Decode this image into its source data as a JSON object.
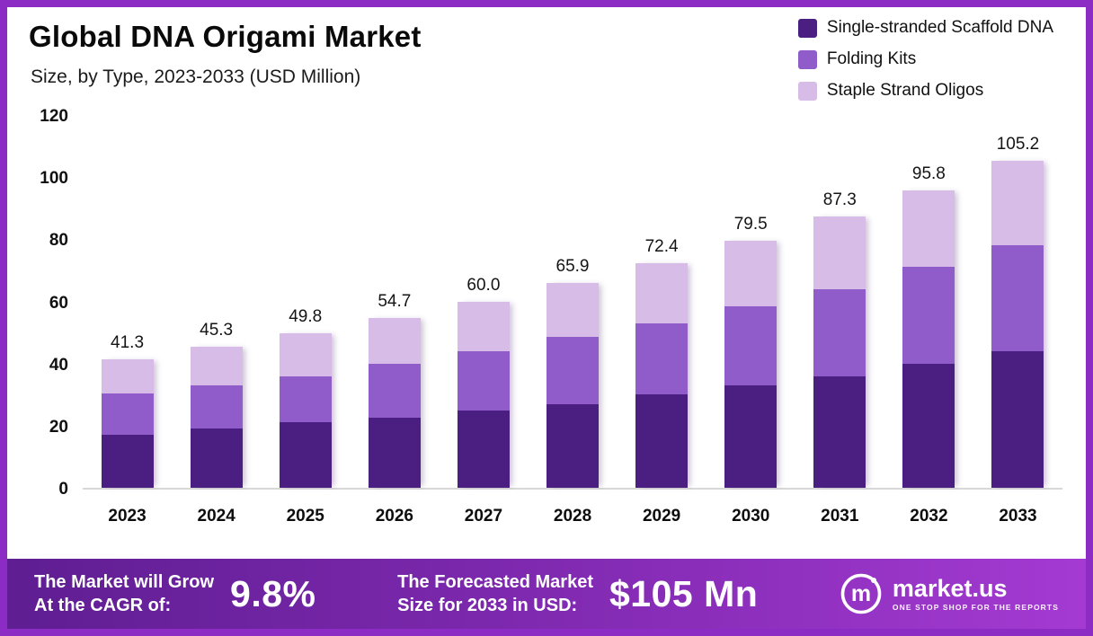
{
  "header": {
    "title": "Global DNA Origami Market",
    "subtitle": "Size, by Type, 2023-2033 (USD Million)"
  },
  "legend": [
    {
      "label": "Single-stranded Scaffold DNA",
      "color": "#4b1f82"
    },
    {
      "label": "Folding Kits",
      "color": "#8f5cc9"
    },
    {
      "label": "Staple Strand Oligos",
      "color": "#d8bce8"
    }
  ],
  "chart_data": {
    "type": "bar",
    "stacked": true,
    "title": "Global DNA Origami Market",
    "subtitle": "Size, by Type, 2023-2033 (USD Million)",
    "xlabel": "",
    "ylabel": "USD Million",
    "categories": [
      "2023",
      "2024",
      "2025",
      "2026",
      "2027",
      "2028",
      "2029",
      "2030",
      "2031",
      "2032",
      "2033"
    ],
    "totals": [
      41.3,
      45.3,
      49.8,
      54.7,
      60.0,
      65.9,
      72.4,
      79.5,
      87.3,
      95.8,
      105.2
    ],
    "series": [
      {
        "name": "Single-stranded Scaffold DNA",
        "color": "#4b1f82",
        "values": [
          17.0,
          19.0,
          21.0,
          22.5,
          25.0,
          27.0,
          30.0,
          33.0,
          36.0,
          40.0,
          44.0
        ]
      },
      {
        "name": "Folding Kits",
        "color": "#8f5cc9",
        "values": [
          13.5,
          14.0,
          15.0,
          17.5,
          19.0,
          21.5,
          23.0,
          25.5,
          28.0,
          31.0,
          34.0
        ]
      },
      {
        "name": "Staple Strand Oligos",
        "color": "#d8bce8",
        "values": [
          10.8,
          12.3,
          13.8,
          14.7,
          16.0,
          17.4,
          19.4,
          21.0,
          23.3,
          24.8,
          27.2
        ]
      }
    ],
    "ylim": [
      0,
      120
    ],
    "yticks": [
      0,
      20,
      40,
      60,
      80,
      100,
      120
    ],
    "grid": false,
    "legend_position": "top-right"
  },
  "banner": {
    "left_label_line1": "The Market will Grow",
    "left_label_line2": "At the CAGR of:",
    "cagr_value": "9.8%",
    "right_label_line1": "The Forecasted Market",
    "right_label_line2": "Size for 2033 in USD:",
    "forecast_value": "$105 Mn",
    "brand_name": "market.us",
    "brand_tagline": "ONE STOP SHOP FOR THE REPORTS"
  }
}
